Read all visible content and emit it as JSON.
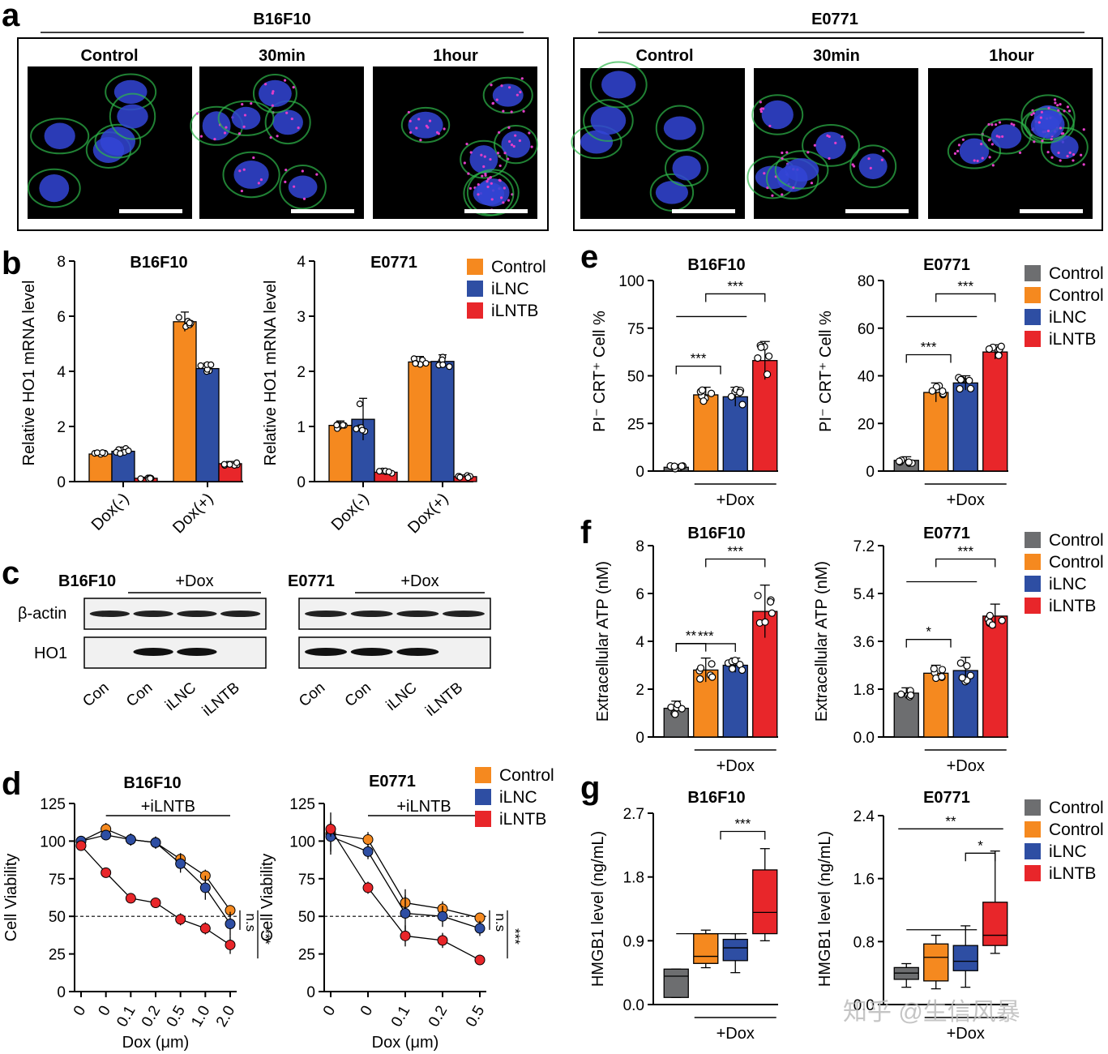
{
  "watermark": "知乎 @生信风暴",
  "colors": {
    "control_gray": "#6d6e70",
    "control": "#f5891f",
    "ilnc": "#2e4ea3",
    "ilntb": "#e8262a",
    "nucleus": "#3245d6",
    "membrane": "#2db84a",
    "particle": "#e23ec8"
  },
  "panel_a": {
    "letter": "a",
    "groups": [
      {
        "cell_line": "B16F10",
        "conditions": [
          "Control",
          "30min",
          "1hour"
        ]
      },
      {
        "cell_line": "E0771",
        "conditions": [
          "Control",
          "30min",
          "1hour"
        ]
      }
    ]
  },
  "panel_c": {
    "letter": "c",
    "blots": [
      {
        "cell_line": "B16F10",
        "treatment": "+Dox",
        "rows": [
          "β-actin",
          "HO1"
        ],
        "lanes": [
          "Con",
          "Con",
          "iLNC",
          "iLNTB"
        ]
      },
      {
        "cell_line": "E0771",
        "treatment": "+Dox",
        "rows": [
          "β-actin",
          "HO1"
        ],
        "lanes": [
          "Con",
          "Con",
          "iLNC",
          "iLNTB"
        ]
      }
    ]
  },
  "chart_data": [
    {
      "id": "b1",
      "letter": "b",
      "type": "bar",
      "title": "B16F10",
      "ylabel": "Relative HO1 mRNA level",
      "ylim": [
        0,
        8
      ],
      "yticks": [
        "0",
        "2",
        "4",
        "6",
        "8"
      ],
      "categories": [
        "Dox(-)",
        "Dox(+)"
      ],
      "series": [
        {
          "name": "Control",
          "values": [
            1.0,
            5.8
          ],
          "err": [
            0.07,
            0.35
          ]
        },
        {
          "name": "iLNC",
          "values": [
            1.1,
            4.1
          ],
          "err": [
            0.15,
            0.2
          ]
        },
        {
          "name": "iLNTB",
          "values": [
            0.12,
            0.65
          ],
          "err": [
            0.04,
            0.08
          ]
        }
      ]
    },
    {
      "id": "b2",
      "type": "bar",
      "title": "E0771",
      "ylabel": "Relative HO1 mRNA level",
      "ylim": [
        0,
        4
      ],
      "yticks": [
        "0",
        "1",
        "2",
        "3",
        "4"
      ],
      "categories": [
        "Dox(-)",
        "Dox(+)"
      ],
      "series": [
        {
          "name": "Control",
          "values": [
            1.02,
            2.17
          ],
          "err": [
            0.08,
            0.1
          ]
        },
        {
          "name": "iLNC",
          "values": [
            1.13,
            2.18
          ],
          "err": [
            0.38,
            0.12
          ]
        },
        {
          "name": "iLNTB",
          "values": [
            0.17,
            0.09
          ],
          "err": [
            0.03,
            0.03
          ]
        }
      ],
      "legend": [
        "Control",
        "iLNC",
        "iLNTB"
      ]
    },
    {
      "id": "d1",
      "letter": "d",
      "type": "line",
      "title": "B16F10",
      "ylabel": "Cell Viability",
      "xlabel": "Dox (μm)",
      "ylim": [
        0,
        125
      ],
      "yticks": [
        "0",
        "25",
        "50",
        "75",
        "100",
        "125"
      ],
      "x": [
        "0",
        "0",
        "0.1",
        "0.2",
        "0.5",
        "1.0",
        "2.0"
      ],
      "bracket": "+iLNTB",
      "ref_y": 50,
      "sig": [
        "n.s",
        "***"
      ],
      "series": [
        {
          "name": "Control",
          "values": [
            100,
            108,
            101,
            99,
            88,
            77,
            54
          ],
          "err": [
            2,
            4,
            4,
            4,
            4,
            4,
            3
          ]
        },
        {
          "name": "iLNC",
          "values": [
            100,
            104,
            101,
            99,
            85,
            69,
            45
          ],
          "err": [
            2,
            2,
            4,
            4,
            6,
            8,
            8
          ]
        },
        {
          "name": "iLNTB",
          "values": [
            97,
            79,
            62,
            59,
            48,
            42,
            31
          ],
          "err": [
            2,
            2,
            2,
            2,
            4,
            4,
            6
          ]
        }
      ]
    },
    {
      "id": "d2",
      "type": "line",
      "title": "E0771",
      "ylabel": "Cell Viability",
      "xlabel": "Dox (μm)",
      "ylim": [
        0,
        125
      ],
      "yticks": [
        "0",
        "25",
        "50",
        "75",
        "100",
        "125"
      ],
      "x": [
        "0",
        "0",
        "0.1",
        "0.2",
        "0.5"
      ],
      "bracket": "+iLNTB",
      "ref_y": 50,
      "sig": [
        "n.s",
        "***"
      ],
      "series": [
        {
          "name": "Control",
          "values": [
            105,
            101,
            59,
            55,
            49
          ],
          "err": [
            14,
            5,
            9,
            5,
            3
          ]
        },
        {
          "name": "iLNC",
          "values": [
            103,
            93,
            52,
            50,
            42
          ],
          "err": [
            10,
            5,
            12,
            7,
            5
          ]
        },
        {
          "name": "iLNTB",
          "values": [
            108,
            69,
            37,
            34,
            21
          ],
          "err": [
            5,
            4,
            7,
            5,
            3
          ]
        }
      ],
      "legend": [
        "Control",
        "iLNC",
        "iLNTB"
      ]
    },
    {
      "id": "e1",
      "letter": "e",
      "type": "bar",
      "title": "B16F10",
      "ylabel": "PI⁻ CRT⁺ Cell %",
      "ylim": [
        0,
        100
      ],
      "yticks": [
        "0",
        "25",
        "50",
        "75",
        "100"
      ],
      "groups": [
        "Control",
        "Control",
        "iLNC",
        "iLNTB"
      ],
      "values": [
        2,
        40,
        39,
        58
      ],
      "err": [
        1,
        4,
        5,
        10
      ],
      "xgroup": "+Dox",
      "sig": [
        "***",
        "***"
      ]
    },
    {
      "id": "e2",
      "type": "bar",
      "title": "E0771",
      "ylabel": "PI⁻ CRT⁺ Cell %",
      "ylim": [
        0,
        80
      ],
      "yticks": [
        "0",
        "20",
        "40",
        "60",
        "80"
      ],
      "groups": [
        "Control",
        "Control",
        "iLNC",
        "iLNTB"
      ],
      "values": [
        4.5,
        33,
        37,
        50
      ],
      "err": [
        1.5,
        4,
        3,
        3
      ],
      "xgroup": "+Dox",
      "sig": [
        "***",
        "***"
      ],
      "legend": [
        "Control",
        "Control",
        "iLNC",
        "iLNTB"
      ]
    },
    {
      "id": "f1",
      "letter": "f",
      "type": "bar",
      "title": "B16F10",
      "ylabel": "Extracellular ATP (nM)",
      "ylim": [
        0,
        8
      ],
      "yticks": [
        "0",
        "2",
        "4",
        "6",
        "8"
      ],
      "groups": [
        "Control",
        "Control",
        "iLNC",
        "iLNTB"
      ],
      "values": [
        1.2,
        2.8,
        3.0,
        5.25
      ],
      "err": [
        0.3,
        0.5,
        0.3,
        1.1
      ],
      "xgroup": "+Dox",
      "sig": [
        "**",
        "***",
        "***"
      ]
    },
    {
      "id": "f2",
      "type": "bar",
      "title": "E0771",
      "ylabel": "Extracellular ATP (nM)",
      "ylim": [
        0,
        7.2
      ],
      "yticks": [
        "0.0",
        "1.8",
        "3.6",
        "5.4",
        "7.2"
      ],
      "groups": [
        "Control",
        "Control",
        "iLNC",
        "iLNTB"
      ],
      "values": [
        1.65,
        2.4,
        2.5,
        4.55
      ],
      "err": [
        0.2,
        0.3,
        0.5,
        0.45
      ],
      "xgroup": "+Dox",
      "sig": [
        "*",
        "***"
      ],
      "legend": [
        "Control",
        "Control",
        "iLNC",
        "iLNTB"
      ]
    },
    {
      "id": "g1",
      "letter": "g",
      "type": "box",
      "title": "B16F10",
      "ylabel": "HMGB1 level (ng/mL)",
      "ylim": [
        0,
        2.7
      ],
      "yticks": [
        "0.0",
        "0.9",
        "1.8",
        "2.7"
      ],
      "groups": [
        "Control",
        "Control",
        "iLNC",
        "iLNTB"
      ],
      "xgroup": "+Dox",
      "sig": [
        "***"
      ],
      "boxes": [
        {
          "min": 0.1,
          "q1": 0.1,
          "median": 0.4,
          "q3": 0.5,
          "max": 0.5
        },
        {
          "min": 0.52,
          "q1": 0.58,
          "median": 0.68,
          "q3": 1.0,
          "max": 1.05
        },
        {
          "min": 0.45,
          "q1": 0.62,
          "median": 0.8,
          "q3": 0.92,
          "max": 1.0
        },
        {
          "min": 0.9,
          "q1": 1.0,
          "median": 1.3,
          "q3": 1.9,
          "max": 2.2
        }
      ]
    },
    {
      "id": "g2",
      "type": "box",
      "title": "E0771",
      "ylabel": "HMGB1 level (ng/mL)",
      "ylim": [
        0,
        2.4
      ],
      "yticks": [
        "0.0",
        "0.8",
        "1.6",
        "2.4"
      ],
      "groups": [
        "Control",
        "Control",
        "iLNC",
        "iLNTB"
      ],
      "xgroup": "+Dox",
      "sig": [
        "**",
        "*"
      ],
      "boxes": [
        {
          "min": 0.22,
          "q1": 0.32,
          "median": 0.4,
          "q3": 0.47,
          "max": 0.52
        },
        {
          "min": 0.2,
          "q1": 0.3,
          "median": 0.6,
          "q3": 0.77,
          "max": 0.88
        },
        {
          "min": 0.22,
          "q1": 0.43,
          "median": 0.55,
          "q3": 0.75,
          "max": 1.0
        },
        {
          "min": 0.65,
          "q1": 0.75,
          "median": 0.88,
          "q3": 1.3,
          "max": 1.95
        }
      ],
      "legend": [
        "Control",
        "Control",
        "iLNC",
        "iLNTB"
      ]
    }
  ]
}
